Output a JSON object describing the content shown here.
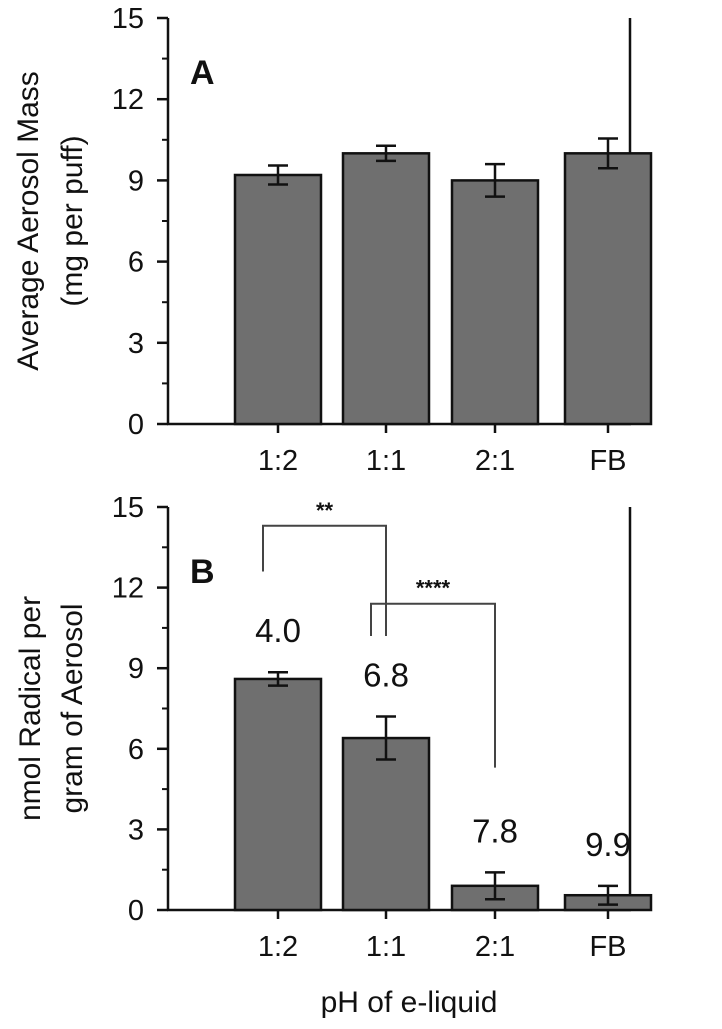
{
  "colors": {
    "bar": "#6f6f6f",
    "axis": "#111111",
    "bracket": "#444444"
  },
  "chart_data": [
    {
      "type": "bar",
      "panel_label": "A",
      "categories": [
        "1:2",
        "1:1",
        "2:1",
        "FB"
      ],
      "values": [
        9.2,
        10.0,
        9.0,
        10.0
      ],
      "errors": [
        0.35,
        0.28,
        0.6,
        0.55
      ],
      "ylabel": [
        "Average Aerosol Mass",
        "(mg per puff)"
      ],
      "xlabel": "",
      "ylim": [
        0,
        15
      ],
      "yticks": [
        0,
        3,
        6,
        9,
        12,
        15
      ],
      "data_labels": [],
      "significance": []
    },
    {
      "type": "bar",
      "panel_label": "B",
      "categories": [
        "1:2",
        "1:1",
        "2:1",
        "FB"
      ],
      "values": [
        8.6,
        6.4,
        0.9,
        0.55
      ],
      "errors": [
        0.25,
        0.8,
        0.5,
        0.35
      ],
      "ylabel": [
        "nmol Radical per",
        "gram of Aerosol"
      ],
      "xlabel": "pH of e-liquid",
      "ylim": [
        0,
        15
      ],
      "yticks": [
        0,
        3,
        6,
        9,
        12,
        15
      ],
      "data_labels": [
        "4.0",
        "6.8",
        "7.8",
        "9.9"
      ],
      "significance": [
        {
          "from": 0,
          "to": 1,
          "label": "**",
          "level": 14.3,
          "left_end": 12.6,
          "right_end": 10.2
        },
        {
          "from": 1,
          "to": 2,
          "label": "****",
          "level": 11.4,
          "left_end": 10.2,
          "right_end": 5.3
        }
      ]
    }
  ]
}
